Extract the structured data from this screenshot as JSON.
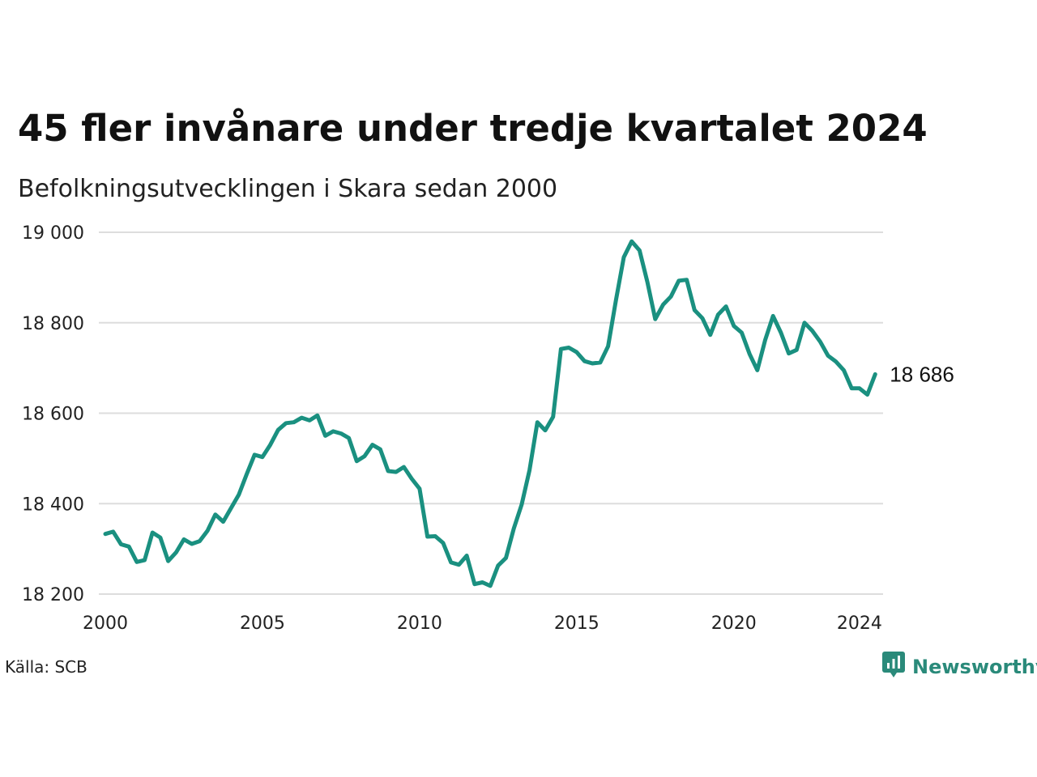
{
  "title": "45 fler invånare under tredje kvartalet 2024",
  "subtitle": "Befolkningsutvecklingen i Skara sedan 2000",
  "source": "Källa: SCB",
  "brand": {
    "name": "Newsworthy",
    "icon": "newsworthy-logo-icon",
    "color": "#2a8a7a"
  },
  "colors": {
    "line": "#1a9080",
    "grid": "#dddddd",
    "text": "#111111"
  },
  "chart_data": {
    "type": "line",
    "title": "45 fler invånare under tredje kvartalet 2024",
    "subtitle": "Befolkningsutvecklingen i Skara sedan 2000",
    "xlabel": "",
    "ylabel": "",
    "xlim": [
      2000,
      2024.75
    ],
    "ylim": [
      18200,
      19000
    ],
    "grid": true,
    "x_ticks": [
      {
        "value": 2000,
        "label": "2000"
      },
      {
        "value": 2005,
        "label": "2005"
      },
      {
        "value": 2010,
        "label": "2010"
      },
      {
        "value": 2015,
        "label": "2015"
      },
      {
        "value": 2020,
        "label": "2020"
      },
      {
        "value": 2024,
        "label": "2024"
      }
    ],
    "y_ticks": [
      {
        "value": 18200,
        "label": "18 200"
      },
      {
        "value": 18400,
        "label": "18 400"
      },
      {
        "value": 18600,
        "label": "18 600"
      },
      {
        "value": 18800,
        "label": "18 800"
      },
      {
        "value": 19000,
        "label": "19 000"
      }
    ],
    "end_label": "18 686",
    "series": [
      {
        "x": [
          "2000Q1",
          "2000Q2",
          "2000Q3",
          "2000Q4",
          "2001Q1",
          "2001Q2",
          "2001Q3",
          "2001Q4",
          "2002Q1",
          "2002Q2",
          "2002Q3",
          "2002Q4",
          "2003Q1",
          "2003Q2",
          "2003Q3",
          "2003Q4",
          "2004Q1",
          "2004Q2",
          "2004Q3",
          "2004Q4",
          "2005Q1",
          "2005Q2",
          "2005Q3",
          "2005Q4",
          "2006Q1",
          "2006Q2",
          "2006Q3",
          "2006Q4",
          "2007Q1",
          "2007Q2",
          "2007Q3",
          "2007Q4",
          "2008Q1",
          "2008Q2",
          "2008Q3",
          "2008Q4",
          "2009Q1",
          "2009Q2",
          "2009Q3",
          "2009Q4",
          "2010Q1",
          "2010Q2",
          "2010Q3",
          "2010Q4",
          "2011Q1",
          "2011Q2",
          "2011Q3",
          "2011Q4",
          "2012Q1",
          "2012Q2",
          "2012Q3",
          "2012Q4",
          "2013Q1",
          "2013Q2",
          "2013Q3",
          "2013Q4",
          "2014Q1",
          "2014Q2",
          "2014Q3",
          "2014Q4",
          "2015Q1",
          "2015Q2",
          "2015Q3",
          "2015Q4",
          "2016Q1",
          "2016Q2",
          "2016Q3",
          "2016Q4",
          "2017Q1",
          "2017Q2",
          "2017Q3",
          "2017Q4",
          "2018Q1",
          "2018Q2",
          "2018Q3",
          "2018Q4",
          "2019Q1",
          "2019Q2",
          "2019Q3",
          "2019Q4",
          "2020Q1",
          "2020Q2",
          "2020Q3",
          "2020Q4",
          "2021Q1",
          "2021Q2",
          "2021Q3",
          "2021Q4",
          "2022Q1",
          "2022Q2",
          "2022Q3",
          "2022Q4",
          "2023Q1",
          "2023Q2",
          "2023Q3",
          "2023Q4",
          "2024Q1",
          "2024Q2",
          "2024Q3"
        ],
        "values": [
          18333,
          18338,
          18310,
          18305,
          18271,
          18275,
          18336,
          18325,
          18273,
          18292,
          18321,
          18311,
          18317,
          18340,
          18376,
          18360,
          18390,
          18420,
          18465,
          18508,
          18503,
          18530,
          18563,
          18578,
          18580,
          18590,
          18584,
          18595,
          18550,
          18560,
          18555,
          18545,
          18494,
          18505,
          18530,
          18520,
          18472,
          18470,
          18481,
          18455,
          18433,
          18327,
          18328,
          18313,
          18270,
          18265,
          18285,
          18222,
          18226,
          18218,
          18263,
          18280,
          18345,
          18398,
          18474,
          18580,
          18562,
          18592,
          18742,
          18745,
          18735,
          18715,
          18710,
          18712,
          18748,
          18850,
          18945,
          18980,
          18960,
          18890,
          18808,
          18840,
          18858,
          18893,
          18895,
          18828,
          18810,
          18773,
          18818,
          18836,
          18793,
          18778,
          18731,
          18695,
          18762,
          18815,
          18778,
          18732,
          18740,
          18800,
          18782,
          18758,
          18727,
          18714,
          18695,
          18655,
          18655,
          18641,
          18686
        ]
      }
    ]
  }
}
